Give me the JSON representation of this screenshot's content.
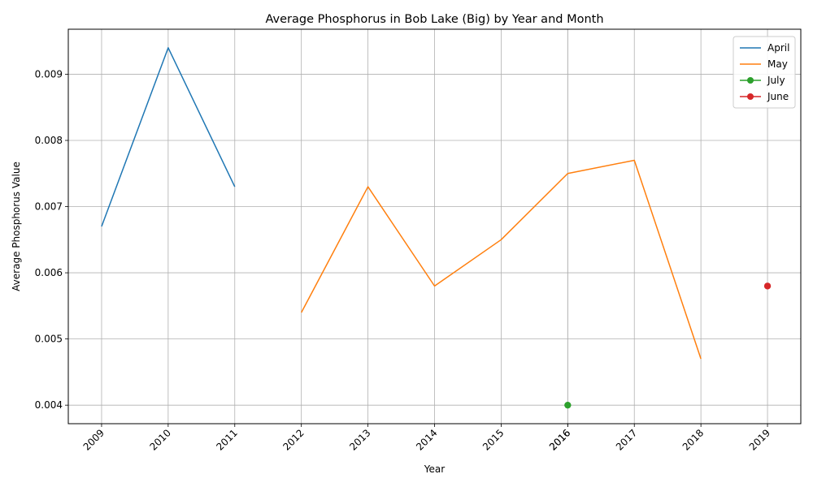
{
  "chart_data": {
    "type": "line",
    "title": "Average Phosphorus in Bob Lake (Big) by Year and Month",
    "xlabel": "Year",
    "ylabel": "Average Phosphorus Value",
    "x_ticks": [
      "2009",
      "2010",
      "2011",
      "2012",
      "2013",
      "2014",
      "2015",
      "2016",
      "2016",
      "2017",
      "2018",
      "2019"
    ],
    "y_ticks": [
      "0.004",
      "0.005",
      "0.006",
      "0.007",
      "0.008",
      "0.009"
    ],
    "xlim": [
      2008.5,
      2019.5
    ],
    "ylim": [
      0.00372,
      0.00968
    ],
    "grid": true,
    "legend_position": "top-right",
    "series": [
      {
        "name": "April",
        "color": "#1f77b4",
        "marker": "none",
        "points": [
          {
            "x": 2009,
            "y": 0.0067
          },
          {
            "x": 2010,
            "y": 0.0094
          },
          {
            "x": 2011,
            "y": 0.0073
          }
        ]
      },
      {
        "name": "May",
        "color": "#ff7f0e",
        "marker": "none",
        "points": [
          {
            "x": 2012,
            "y": 0.0054
          },
          {
            "x": 2013,
            "y": 0.0073
          },
          {
            "x": 2014,
            "y": 0.0058
          },
          {
            "x": 2015,
            "y": 0.0065
          },
          {
            "x": 2016,
            "y": 0.0075
          },
          {
            "x": 2017,
            "y": 0.0077
          },
          {
            "x": 2018,
            "y": 0.0047
          }
        ]
      },
      {
        "name": "July",
        "color": "#2ca02c",
        "marker": "circle",
        "points": [
          {
            "x": 2016,
            "y": 0.004
          }
        ]
      },
      {
        "name": "June",
        "color": "#d62728",
        "marker": "circle",
        "points": [
          {
            "x": 2019,
            "y": 0.0058
          }
        ]
      }
    ]
  }
}
